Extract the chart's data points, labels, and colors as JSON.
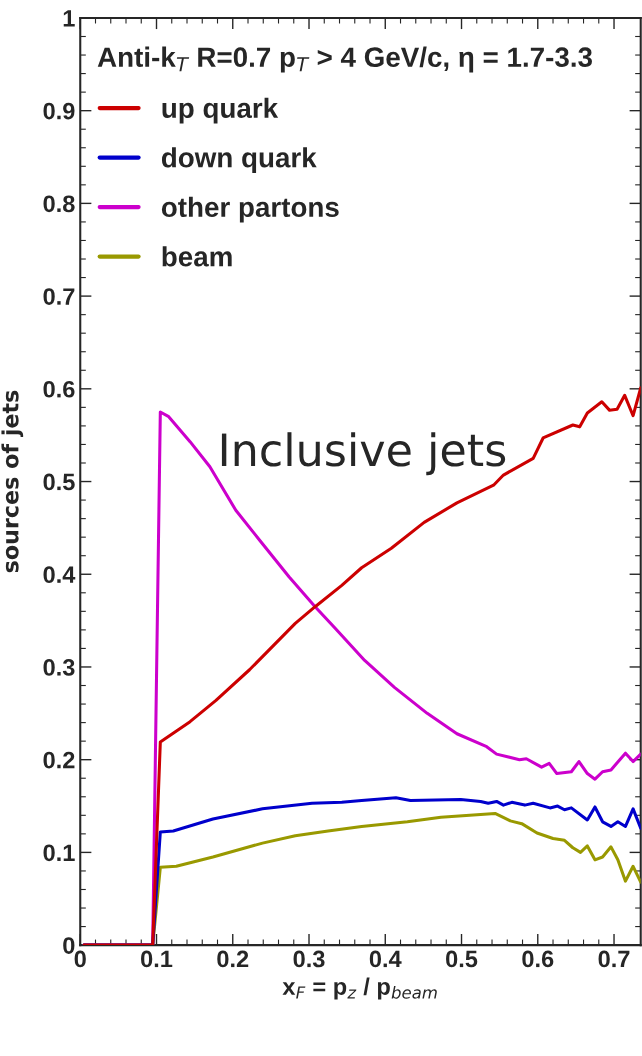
{
  "chart_data": {
    "type": "line",
    "xlabel": "x$_{F}$ = p$_{z}$ / p$_{beam}$",
    "ylabel": "sources of jets",
    "annotations": [
      "Anti-k$_{T}$ R=0.7 p$_{T}$ > 4 GeV/c, η = 1.7-3.3",
      "Inclusive jets"
    ],
    "xlim": [
      0,
      0.735
    ],
    "ylim": [
      0,
      1
    ],
    "xticks": [
      0,
      0.1,
      0.2,
      0.3,
      0.4,
      0.5,
      0.6,
      0.7
    ],
    "yticks": [
      0,
      0.1,
      0.2,
      0.3,
      0.4,
      0.5,
      0.6,
      0.7,
      0.8,
      0.9,
      1
    ],
    "legend": "top left",
    "grid": false,
    "marker": "none",
    "line_style": "solid",
    "series": [
      {
        "name": "up quark",
        "color": "#cc0000",
        "x": [
          0.005,
          0.095,
          0.105,
          0.144,
          0.178,
          0.222,
          0.282,
          0.308,
          0.343,
          0.369,
          0.408,
          0.451,
          0.494,
          0.542,
          0.555,
          0.594,
          0.607,
          0.646,
          0.655,
          0.665,
          0.684,
          0.694,
          0.704,
          0.714,
          0.725,
          0.735
        ],
        "values": [
          0,
          0,
          0.219,
          0.241,
          0.264,
          0.297,
          0.347,
          0.365,
          0.388,
          0.407,
          0.428,
          0.456,
          0.477,
          0.496,
          0.507,
          0.525,
          0.547,
          0.561,
          0.559,
          0.574,
          0.586,
          0.577,
          0.578,
          0.593,
          0.571,
          0.601
        ]
      },
      {
        "name": "down quark",
        "color": "#0000cc",
        "x": [
          0.005,
          0.095,
          0.105,
          0.122,
          0.174,
          0.239,
          0.304,
          0.343,
          0.369,
          0.414,
          0.433,
          0.499,
          0.525,
          0.535,
          0.546,
          0.555,
          0.566,
          0.583,
          0.594,
          0.616,
          0.626,
          0.635,
          0.644,
          0.665,
          0.675,
          0.685,
          0.696,
          0.705,
          0.715,
          0.725,
          0.735
        ],
        "values": [
          0,
          0,
          0.122,
          0.123,
          0.136,
          0.147,
          0.153,
          0.154,
          0.156,
          0.159,
          0.156,
          0.157,
          0.155,
          0.153,
          0.155,
          0.151,
          0.154,
          0.151,
          0.153,
          0.148,
          0.15,
          0.146,
          0.148,
          0.135,
          0.149,
          0.133,
          0.128,
          0.133,
          0.128,
          0.147,
          0.126
        ]
      },
      {
        "name": "other partons",
        "color": "#cc00cc",
        "x": [
          0.005,
          0.095,
          0.105,
          0.116,
          0.144,
          0.17,
          0.204,
          0.235,
          0.274,
          0.308,
          0.334,
          0.373,
          0.412,
          0.455,
          0.494,
          0.533,
          0.546,
          0.576,
          0.585,
          0.605,
          0.615,
          0.625,
          0.644,
          0.654,
          0.665,
          0.675,
          0.685,
          0.696,
          0.715,
          0.725,
          0.735
        ],
        "values": [
          0,
          0,
          0.575,
          0.57,
          0.543,
          0.516,
          0.469,
          0.437,
          0.397,
          0.365,
          0.342,
          0.307,
          0.278,
          0.25,
          0.228,
          0.214,
          0.206,
          0.2,
          0.201,
          0.192,
          0.196,
          0.185,
          0.187,
          0.198,
          0.185,
          0.179,
          0.187,
          0.189,
          0.207,
          0.198,
          0.206
        ]
      },
      {
        "name": "beam",
        "color": "#999900",
        "x": [
          0.005,
          0.095,
          0.105,
          0.126,
          0.174,
          0.239,
          0.282,
          0.325,
          0.369,
          0.429,
          0.473,
          0.544,
          0.564,
          0.579,
          0.599,
          0.62,
          0.635,
          0.646,
          0.656,
          0.665,
          0.675,
          0.685,
          0.696,
          0.705,
          0.715,
          0.725,
          0.735
        ],
        "values": [
          0,
          0,
          0.084,
          0.085,
          0.095,
          0.11,
          0.118,
          0.123,
          0.128,
          0.133,
          0.138,
          0.142,
          0.134,
          0.131,
          0.121,
          0.115,
          0.113,
          0.105,
          0.1,
          0.107,
          0.092,
          0.095,
          0.106,
          0.092,
          0.069,
          0.085,
          0.068
        ]
      }
    ]
  }
}
